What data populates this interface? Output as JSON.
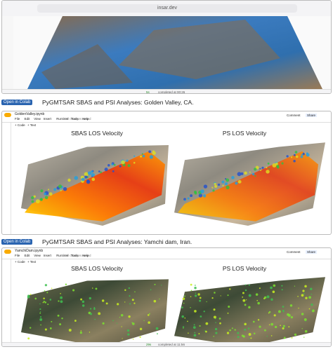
{
  "browser": {
    "url": "insar.dev",
    "status_time": "5s",
    "status": "completed at 00:26"
  },
  "sections": [
    {
      "badge": "Open in Colab",
      "title": "PyGMTSAR SBAS and PSI Analyses: Golden Valley, CA.",
      "notebook": {
        "file": "GoldenValley.ipynb",
        "saved": "All changes saved",
        "menu": [
          "File",
          "Edit",
          "View",
          "Insert",
          "Runtime",
          "Tools",
          "Help"
        ],
        "comment": "Comment",
        "share": "Share",
        "add_code": "+ Code",
        "add_text": "+ Text",
        "plots": [
          "SBAS LOS Velocity",
          "PS LOS Velocity"
        ]
      }
    },
    {
      "badge": "Open in Colab",
      "title": "PyGMTSAR SBAS and PSI Analyses: Yamchi dam, Iran.",
      "notebook": {
        "file": "YamchiDam.ipynb",
        "saved": "All changes saved",
        "menu": [
          "File",
          "Edit",
          "View",
          "Insert",
          "Runtime",
          "Tools",
          "Help"
        ],
        "comment": "Comment",
        "share": "Share",
        "add_code": "+ Code",
        "add_text": "+ Text",
        "plots": [
          "SBAS LOS Velocity",
          "PS LOS Velocity"
        ],
        "status_time": "29s",
        "status": "completed at 11:56"
      }
    }
  ]
}
